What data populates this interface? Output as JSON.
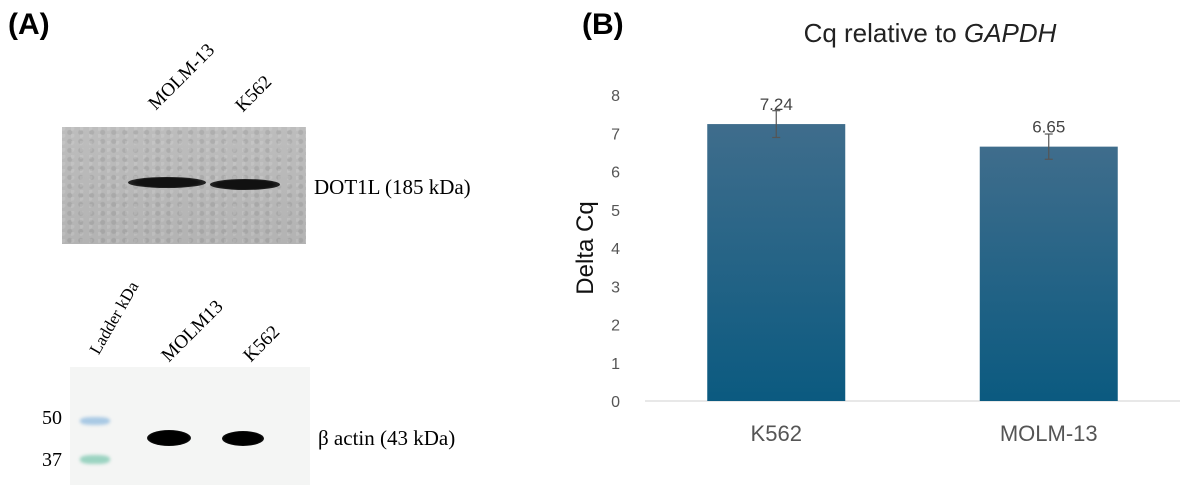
{
  "panel_a": {
    "label": "(A)",
    "top_blot": {
      "lanes": [
        "MOLM-13",
        "K562"
      ],
      "caption": "DOT1L (185 kDa)"
    },
    "bottom_blot": {
      "lanes": [
        "Ladder kDa",
        "MOLM13",
        "K562"
      ],
      "caption": "β actin (43 kDa)",
      "markers": [
        "50",
        "37"
      ]
    }
  },
  "panel_b": {
    "label": "(B)",
    "title_prefix": "Cq relative to ",
    "title_gene": "GAPDH"
  },
  "chart_data": {
    "type": "bar",
    "title": "Cq relative to GAPDH",
    "categories": [
      "K562",
      "MOLM-13"
    ],
    "values": [
      7.24,
      6.65
    ],
    "value_labels": [
      "7.24",
      "6.65"
    ],
    "error": [
      0.35,
      0.33
    ],
    "ylabel": "Delta Cq",
    "xlabel": "",
    "ylim": [
      0,
      8
    ],
    "yticks": [
      "0",
      "1",
      "2",
      "3",
      "4",
      "5",
      "6",
      "7",
      "8"
    ],
    "grid": false,
    "bar_color_top": "#3f6d8c",
    "bar_color_bottom": "#0b5a80"
  }
}
